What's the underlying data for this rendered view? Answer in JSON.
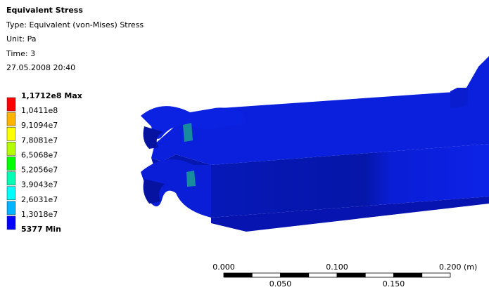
{
  "header": {
    "title": "Equivalent Stress",
    "type": "Type: Equivalent (von-Mises) Stress",
    "unit": "Unit: Pa",
    "time": "Time: 3",
    "date": "27.05.2008 20:40"
  },
  "legend": {
    "labels": [
      "1,1712e8 Max",
      "1,0411e8",
      "9,1094e7",
      "7,8081e7",
      "6,5068e7",
      "5,2056e7",
      "3,9043e7",
      "2,6031e7",
      "1,3018e7",
      "5377 Min"
    ],
    "colors": [
      "#ff0000",
      "#ffb400",
      "#ffff00",
      "#b4ff00",
      "#00ff00",
      "#00ffb4",
      "#00ffff",
      "#00b4ff",
      "#0000ff"
    ]
  },
  "scale_bar": {
    "top_labels": [
      "0.000",
      "0.100",
      "0.200 (m)"
    ],
    "bottom_labels": [
      "0.050",
      "0.150"
    ]
  }
}
